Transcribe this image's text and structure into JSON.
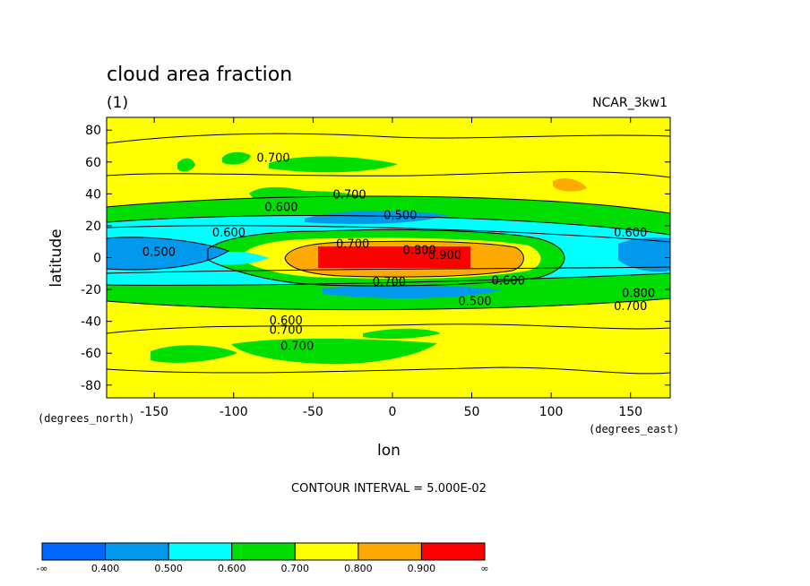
{
  "chart_data": {
    "type": "heatmap",
    "title": "cloud area fraction",
    "subtitle": "(1)",
    "model_label": "NCAR_3kw1",
    "xlabel": "lon",
    "ylabel": "latitude",
    "x_units": "(degrees_east)",
    "y_units": "(degrees_north)",
    "xlim": [
      -180,
      175
    ],
    "ylim": [
      -88,
      88
    ],
    "x_ticks": [
      -150,
      -100,
      -50,
      0,
      50,
      100,
      150
    ],
    "y_ticks": [
      80,
      60,
      40,
      20,
      0,
      -20,
      -40,
      -60,
      -80
    ],
    "contour_interval_text": "CONTOUR INTERVAL = 5.000E-02",
    "legend": {
      "placement": "bottom-left",
      "colors": [
        "#0066ff",
        "#0099ee",
        "#00ffff",
        "#00dd00",
        "#ffff00",
        "#ffaa00",
        "#ff0000"
      ],
      "labels": [
        "-∞",
        "0.400",
        "0.500",
        "0.600",
        "0.700",
        "0.800",
        "0.900",
        "∞"
      ]
    },
    "contour_labels": [
      {
        "text": "0.700",
        "lon": -75,
        "lat": 63
      },
      {
        "text": "0.700",
        "lon": -27,
        "lat": 40
      },
      {
        "text": "0.600",
        "lon": -70,
        "lat": 32
      },
      {
        "text": "0.500",
        "lon": 5,
        "lat": 27
      },
      {
        "text": "0.600",
        "lon": -103,
        "lat": 16
      },
      {
        "text": "0.700",
        "lon": -25,
        "lat": 9
      },
      {
        "text": "0.800",
        "lon": 17,
        "lat": 5
      },
      {
        "text": "0.900",
        "lon": 33,
        "lat": 2
      },
      {
        "text": "0.500",
        "lon": -147,
        "lat": 4
      },
      {
        "text": "0.600",
        "lon": 150,
        "lat": 16
      },
      {
        "text": "0.700",
        "lon": -2,
        "lat": -15
      },
      {
        "text": "0.600",
        "lon": 73,
        "lat": -14
      },
      {
        "text": "0.800",
        "lon": 155,
        "lat": -22
      },
      {
        "text": "0.500",
        "lon": 52,
        "lat": -27
      },
      {
        "text": "0.700",
        "lon": 150,
        "lat": -30
      },
      {
        "text": "0.600",
        "lon": -67,
        "lat": -39
      },
      {
        "text": "0.700",
        "lon": -67,
        "lat": -45
      },
      {
        "text": "0.700",
        "lon": -60,
        "lat": -55
      }
    ]
  }
}
